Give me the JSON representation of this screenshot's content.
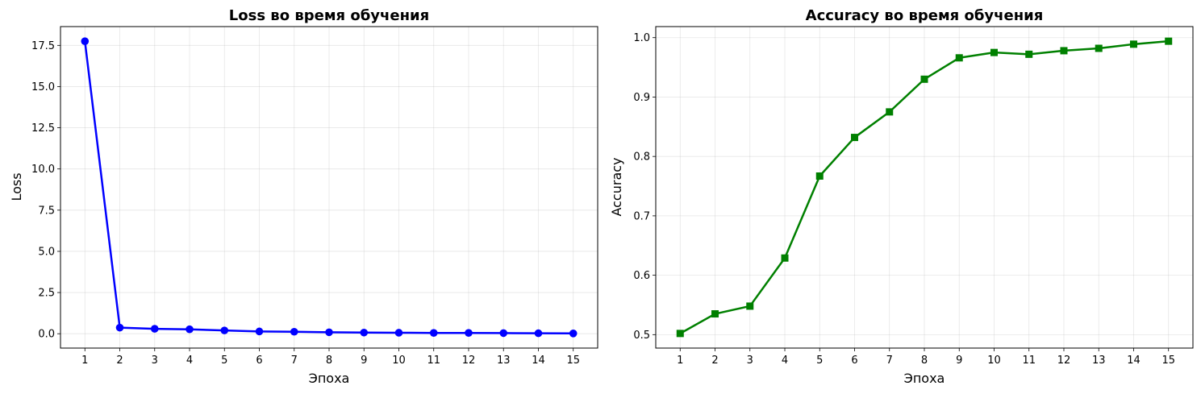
{
  "chart_data": [
    {
      "type": "line",
      "title": "Loss во время обучения",
      "xlabel": "Эпоха",
      "ylabel": "Loss",
      "x": [
        1,
        2,
        3,
        4,
        5,
        6,
        7,
        8,
        9,
        10,
        11,
        12,
        13,
        14,
        15
      ],
      "series": [
        {
          "values": [
            17.75,
            0.37,
            0.3,
            0.27,
            0.2,
            0.14,
            0.12,
            0.09,
            0.07,
            0.06,
            0.05,
            0.05,
            0.04,
            0.03,
            0.02
          ],
          "color": "#0000ff",
          "marker": "circle"
        }
      ],
      "xticks": [
        "1",
        "2",
        "3",
        "4",
        "5",
        "6",
        "7",
        "8",
        "9",
        "10",
        "11",
        "12",
        "13",
        "14",
        "15"
      ],
      "yticks": [
        "0.0",
        "2.5",
        "5.0",
        "7.5",
        "10.0",
        "12.5",
        "15.0",
        "17.5"
      ],
      "ytick_values": [
        0,
        2.5,
        5,
        7.5,
        10,
        12.5,
        15,
        17.5
      ],
      "xlim": [
        0.3,
        15.7
      ],
      "ylim": [
        -0.87,
        18.64
      ],
      "grid": true
    },
    {
      "type": "line",
      "title": "Accuracy во время обучения",
      "xlabel": "Эпоха",
      "ylabel": "Accuracy",
      "x": [
        1,
        2,
        3,
        4,
        5,
        6,
        7,
        8,
        9,
        10,
        11,
        12,
        13,
        14,
        15
      ],
      "series": [
        {
          "values": [
            0.502,
            0.535,
            0.548,
            0.629,
            0.767,
            0.832,
            0.875,
            0.93,
            0.966,
            0.975,
            0.972,
            0.978,
            0.982,
            0.989,
            0.994
          ],
          "color": "#008000",
          "marker": "square"
        }
      ],
      "xticks": [
        "1",
        "2",
        "3",
        "4",
        "5",
        "6",
        "7",
        "8",
        "9",
        "10",
        "11",
        "12",
        "13",
        "14",
        "15"
      ],
      "yticks": [
        "0.5",
        "0.6",
        "0.7",
        "0.8",
        "0.9",
        "1.0"
      ],
      "ytick_values": [
        0.5,
        0.6,
        0.7,
        0.8,
        0.9,
        1.0
      ],
      "xlim": [
        0.3,
        15.7
      ],
      "ylim": [
        0.4774,
        1.0186
      ],
      "grid": true
    }
  ]
}
